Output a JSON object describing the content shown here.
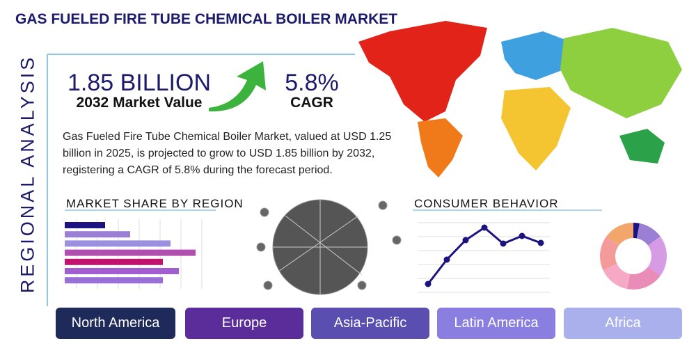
{
  "header": {
    "title": "GAS FUELED FIRE TUBE CHEMICAL BOILER MARKET"
  },
  "side_label": "REGIONAL ANALYSIS",
  "stats": [
    {
      "value": "1.85 BILLION",
      "label": "2032 Market Value"
    },
    {
      "value": "5.8%",
      "label": "CAGR"
    }
  ],
  "description": "Gas Fueled Fire Tube Chemical Boiler Market, valued at USD 1.25 billion in 2025, is projected to grow to USD 1.85 billion by 2032, registering a CAGR of 5.8% during the forecast period.",
  "market_share": {
    "type": "bar",
    "title": "MARKET SHARE BY REGION",
    "values": [
      58,
      94,
      152,
      188,
      141,
      164,
      141
    ],
    "colors": [
      "#1b1380",
      "#9b7fd4",
      "#9b8fe0",
      "#b04fb0",
      "#c0136e",
      "#a05ed0",
      "#9b6fd8"
    ]
  },
  "consumer_behavior": {
    "type": "line",
    "title": "CONSUMER BEHAVIOR",
    "values": [
      12,
      47,
      75,
      93,
      70,
      81,
      71
    ],
    "color": "#1b1380"
  },
  "donut": {
    "type": "pie",
    "values": [
      3,
      12,
      20,
      18,
      15,
      17,
      15
    ],
    "colors": [
      "#1b1380",
      "#9b7fd4",
      "#d79be6",
      "#e98cb8",
      "#f6a9c4",
      "#f39a9a",
      "#f3a66b"
    ]
  },
  "regions": [
    {
      "label": "North America",
      "color": "#1e2a5a"
    },
    {
      "label": "Europe",
      "color": "#5b2d9a"
    },
    {
      "label": "Asia-Pacific",
      "color": "#5a4fb0"
    },
    {
      "label": "Latin America",
      "color": "#8a7ee0"
    },
    {
      "label": "Africa",
      "color": "#aab0ec"
    }
  ]
}
